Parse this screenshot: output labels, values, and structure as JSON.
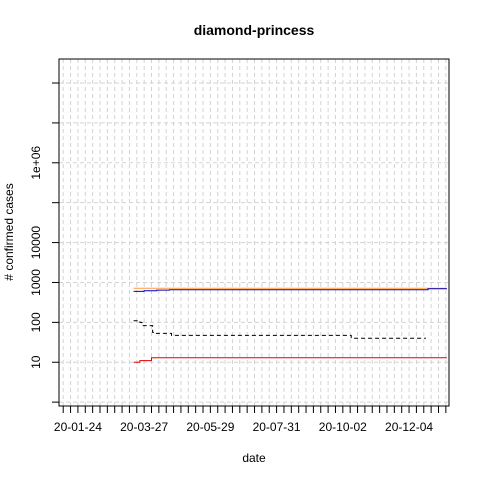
{
  "chart_data": {
    "type": "line",
    "title": "diamond-princess",
    "xlabel": "date",
    "ylabel": "# confirmed cases",
    "y_scale": "log",
    "grid": true,
    "xlim": [
      "2020-01-06",
      "2021-01-11"
    ],
    "ylim": [
      0.8,
      400000000
    ],
    "x_tick_labels": [
      "20-01-24",
      "20-03-27",
      "20-05-29",
      "20-07-31",
      "20-10-02",
      "20-12-04"
    ],
    "x_tick_dates": [
      "2020-01-24",
      "2020-03-27",
      "2020-05-29",
      "2020-07-31",
      "2020-10-02",
      "2020-12-04"
    ],
    "y_tick_labels": [
      "10",
      "100",
      "1000",
      "10000",
      "1e+06"
    ],
    "y_tick_values": [
      10,
      100,
      1000,
      10000,
      1000000
    ],
    "series": [
      {
        "color": "#ff9a3c",
        "dash": "solid",
        "points": [
          [
            "2020-03-17",
            712
          ],
          [
            "2021-01-09",
            712
          ]
        ]
      },
      {
        "color": "#0000cc",
        "dash": "solid",
        "points": [
          [
            "2020-03-17",
            597
          ],
          [
            "2020-03-27",
            619
          ],
          [
            "2020-04-08",
            644
          ],
          [
            "2020-04-20",
            659
          ],
          [
            "2020-05-05",
            659
          ],
          [
            "2020-12-20",
            659
          ],
          [
            "2020-12-22",
            698
          ],
          [
            "2021-01-09",
            698
          ]
        ]
      },
      {
        "color": "#000000",
        "dash": "dashed",
        "points": [
          [
            "2020-03-17",
            110
          ],
          [
            "2020-03-23",
            100
          ],
          [
            "2020-03-25",
            83
          ],
          [
            "2020-04-01",
            83
          ],
          [
            "2020-04-04",
            56
          ],
          [
            "2020-04-06",
            53
          ],
          [
            "2020-04-20",
            53
          ],
          [
            "2020-04-22",
            47
          ],
          [
            "2020-10-09",
            47
          ],
          [
            "2020-10-10",
            40
          ],
          [
            "2020-12-20",
            40
          ]
        ]
      },
      {
        "color": "#dd0000",
        "dash": "solid",
        "points": [
          [
            "2020-03-17",
            10
          ],
          [
            "2020-03-23",
            11
          ],
          [
            "2020-04-03",
            13
          ],
          [
            "2021-01-09",
            13
          ]
        ]
      }
    ]
  }
}
